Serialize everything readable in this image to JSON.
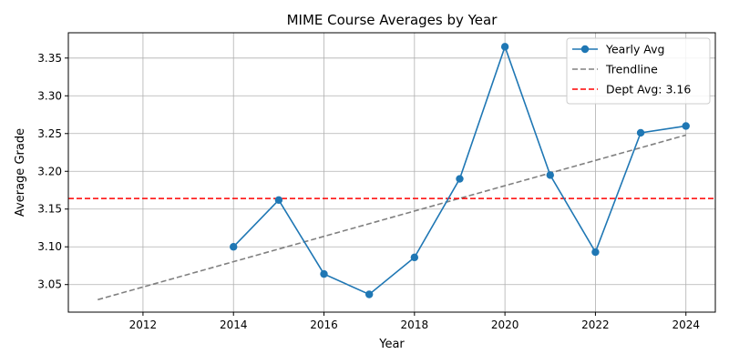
{
  "chart_data": {
    "type": "line",
    "title": "MIME Course Averages by Year",
    "xlabel": "Year",
    "ylabel": "Average Grade",
    "xlim": [
      2010.35,
      2024.65
    ],
    "ylim": [
      3.0135,
      3.3835
    ],
    "xticks": [
      2012,
      2014,
      2016,
      2018,
      2020,
      2022,
      2024
    ],
    "yticks": [
      3.05,
      3.1,
      3.15,
      3.2,
      3.25,
      3.3,
      3.35
    ],
    "grid": true,
    "legend_position": "top-right",
    "series": [
      {
        "name": "Yearly Avg",
        "style": "solid-with-markers",
        "color": "#1f77b4",
        "x": [
          2014,
          2015,
          2016,
          2017,
          2018,
          2019,
          2020,
          2021,
          2022,
          2023,
          2024
        ],
        "y": [
          3.1,
          3.162,
          3.064,
          3.037,
          3.086,
          3.19,
          3.365,
          3.195,
          3.093,
          3.251,
          3.26
        ]
      },
      {
        "name": "Trendline",
        "style": "dashed",
        "color": "#808080",
        "x": [
          2011,
          2024
        ],
        "y": [
          3.03,
          3.248
        ]
      },
      {
        "name": "Dept Avg: 3.16",
        "style": "dashed-horizontal",
        "color": "#ff0000",
        "y": 3.164
      }
    ]
  }
}
